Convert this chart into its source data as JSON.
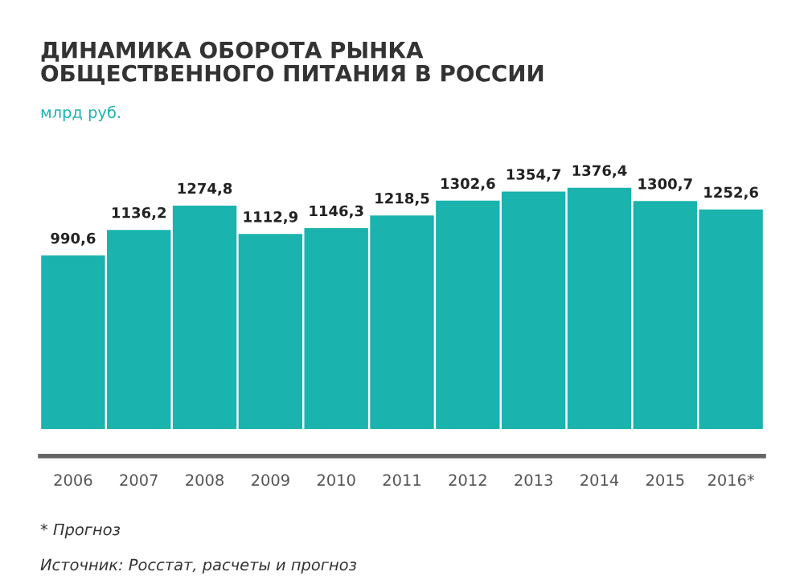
{
  "chart_data": {
    "type": "bar",
    "title": "ДИНАМИКА ОБОРОТА РЫНКА\nОБЩЕСТВЕННОГО ПИТАНИЯ В РОССИИ",
    "subtitle": "млрд руб.",
    "categories": [
      "2006",
      "2007",
      "2008",
      "2009",
      "2010",
      "2011",
      "2012",
      "2013",
      "2014",
      "2015",
      "2016*"
    ],
    "values": [
      990.6,
      1136.2,
      1274.8,
      1112.9,
      1146.3,
      1218.5,
      1302.6,
      1354.7,
      1376.4,
      1300.7,
      1252.6
    ],
    "value_labels": [
      "990,6",
      "1136,2",
      "1274,8",
      "1112,9",
      "1146,3",
      "1218,5",
      "1302,6",
      "1354,7",
      "1376,4",
      "1300,7",
      "1252,6"
    ],
    "color": "#1ab3ae",
    "tick_labels": "x",
    "grid": false,
    "legend": false,
    "annotations": [
      "* Прогноз",
      "Источник: Росстат, расчеты и прогноз"
    ]
  }
}
